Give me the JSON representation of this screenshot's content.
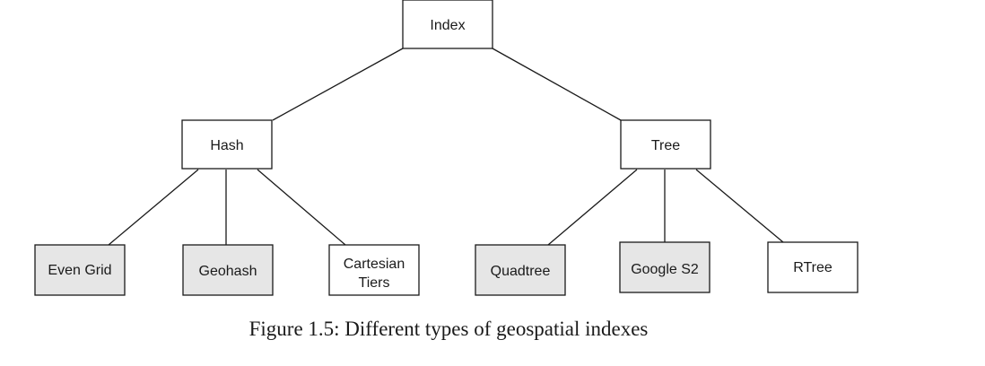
{
  "diagram": {
    "root": {
      "label": "Index"
    },
    "hash": {
      "label": "Hash"
    },
    "tree": {
      "label": "Tree"
    },
    "leaves": {
      "even_grid": {
        "label": "Even Grid",
        "shaded": true
      },
      "geohash": {
        "label": "Geohash",
        "shaded": true
      },
      "cartesian_tiers": {
        "label_line1": "Cartesian",
        "label_line2": "Tiers",
        "shaded": false
      },
      "quadtree": {
        "label": "Quadtree",
        "shaded": true
      },
      "google_s2": {
        "label": "Google S2",
        "shaded": true
      },
      "rtree": {
        "label": "RTree",
        "shaded": false
      }
    }
  },
  "colors": {
    "shaded_fill": "#e6e6e6",
    "plain_fill": "#ffffff",
    "stroke": "#1a1a1a"
  },
  "caption": "Figure 1.5: Different types of geospatial indexes"
}
